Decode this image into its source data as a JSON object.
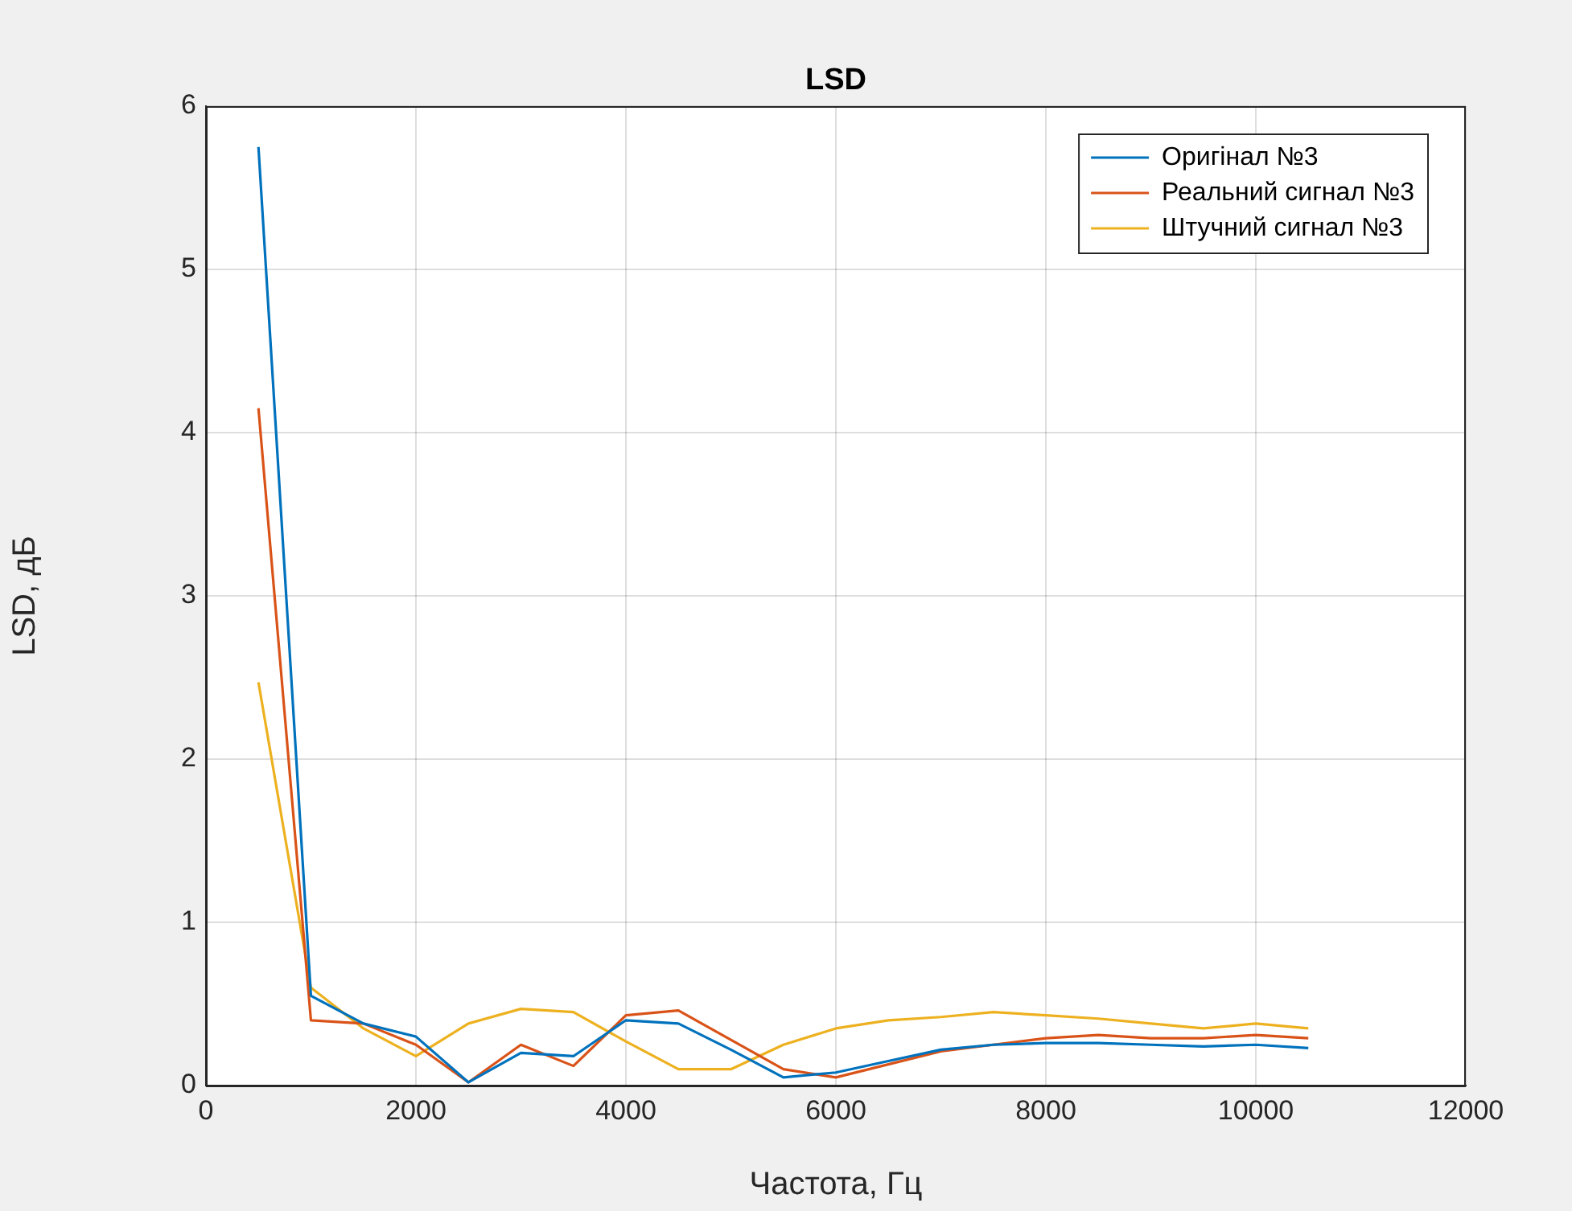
{
  "chart_data": {
    "type": "line",
    "title": "LSD",
    "xlabel": "Частота, Гц",
    "ylabel": "LSD, дБ",
    "x": [
      500,
      1000,
      1500,
      2000,
      2500,
      3000,
      3500,
      4000,
      4500,
      5000,
      5500,
      6000,
      6500,
      7000,
      7500,
      8000,
      8500,
      9000,
      9500,
      10000,
      10500
    ],
    "series": [
      {
        "name": "Оригінал №3",
        "color": "#0072bd",
        "values": [
          5.75,
          0.55,
          0.38,
          0.3,
          0.02,
          0.2,
          0.18,
          0.4,
          0.38,
          0.22,
          0.05,
          0.08,
          0.15,
          0.22,
          0.25,
          0.26,
          0.26,
          0.25,
          0.24,
          0.25,
          0.23
        ]
      },
      {
        "name": "Реальний сигнал №3",
        "color": "#d95319",
        "values": [
          4.15,
          0.4,
          0.38,
          0.25,
          0.02,
          0.25,
          0.12,
          0.43,
          0.46,
          0.28,
          0.1,
          0.05,
          0.13,
          0.21,
          0.25,
          0.29,
          0.31,
          0.29,
          0.29,
          0.31,
          0.29
        ]
      },
      {
        "name": "Штучний сигнал №3",
        "color": "#edb120",
        "values": [
          2.47,
          0.6,
          0.35,
          0.18,
          0.38,
          0.47,
          0.45,
          0.27,
          0.1,
          0.1,
          0.25,
          0.35,
          0.4,
          0.42,
          0.45,
          0.43,
          0.41,
          0.38,
          0.35,
          0.38,
          0.35
        ]
      }
    ],
    "xlim": [
      0,
      12000
    ],
    "xticks": [
      0,
      2000,
      4000,
      6000,
      8000,
      10000,
      12000
    ],
    "ylim": [
      0,
      6
    ],
    "yticks": [
      0,
      1,
      2,
      3,
      4,
      5,
      6
    ],
    "grid": true,
    "legend": "top right"
  }
}
